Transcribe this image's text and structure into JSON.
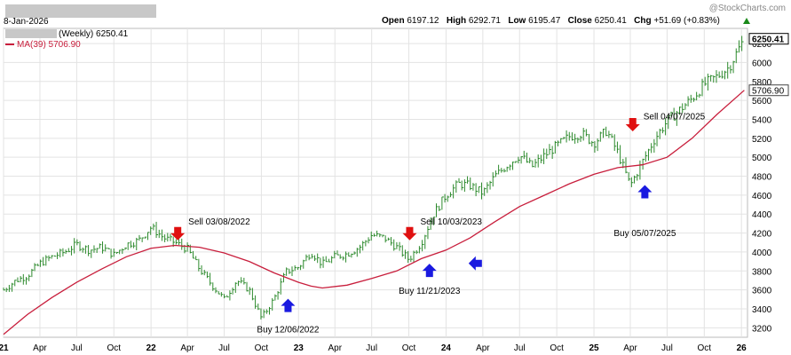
{
  "header": {
    "date": "8-Jan-2026",
    "brand": "@StockCharts.com",
    "open_label": "Open",
    "open": "6197.12",
    "high_label": "High",
    "high": "6292.71",
    "low_label": "Low",
    "low": "6195.47",
    "close_label": "Close",
    "close": "6250.41",
    "chg_label": "Chg",
    "chg": "+51.69 (+0.83%)"
  },
  "legend": {
    "price": "(Weekly) 6250.41",
    "ma": "MA(39) 5706.90"
  },
  "colors": {
    "price": "#2d8a2d",
    "ma": "#c81e3c",
    "grid": "#e3e3e3",
    "sell": "#e01010",
    "buy": "#1a1ae0"
  },
  "chart_data": {
    "type": "line",
    "ylim": [
      3100,
      6360
    ],
    "yticks": [
      3200,
      3400,
      3600,
      3800,
      4000,
      4200,
      4400,
      4600,
      4800,
      5000,
      5200,
      5400,
      5600,
      5800,
      6000,
      6200
    ],
    "xlim": [
      "2021-01-01",
      "2026-01-16"
    ],
    "x_tick_labels": [
      "21",
      "Apr",
      "Jul",
      "Oct",
      "22",
      "Apr",
      "Jul",
      "Oct",
      "23",
      "Apr",
      "Jul",
      "Oct",
      "24",
      "Apr",
      "Jul",
      "Oct",
      "25",
      "Apr",
      "Jul",
      "Oct",
      "26"
    ],
    "x_tick_dates": [
      "2021-01-01",
      "2021-04-01",
      "2021-07-01",
      "2021-10-01",
      "2022-01-01",
      "2022-04-01",
      "2022-07-01",
      "2022-10-01",
      "2023-01-01",
      "2023-04-01",
      "2023-07-01",
      "2023-10-01",
      "2024-01-01",
      "2024-04-01",
      "2024-07-01",
      "2024-10-01",
      "2025-01-01",
      "2025-04-01",
      "2025-07-01",
      "2025-10-01",
      "2026-01-01"
    ],
    "series": [
      {
        "name": "(Weekly) 6250.41",
        "points": [
          [
            "2021-01-01",
            3600
          ],
          [
            "2021-02-01",
            3700
          ],
          [
            "2021-03-01",
            3750
          ],
          [
            "2021-04-01",
            3880
          ],
          [
            "2021-05-01",
            3950
          ],
          [
            "2021-06-01",
            4000
          ],
          [
            "2021-07-01",
            4080
          ],
          [
            "2021-08-01",
            4020
          ],
          [
            "2021-09-01",
            4050
          ],
          [
            "2021-10-01",
            3970
          ],
          [
            "2021-11-01",
            4080
          ],
          [
            "2021-12-01",
            4120
          ],
          [
            "2022-01-01",
            4260
          ],
          [
            "2022-02-01",
            4150
          ],
          [
            "2022-03-01",
            4100
          ],
          [
            "2022-04-01",
            4030
          ],
          [
            "2022-05-01",
            3820
          ],
          [
            "2022-06-01",
            3650
          ],
          [
            "2022-07-01",
            3500
          ],
          [
            "2022-08-01",
            3700
          ],
          [
            "2022-09-01",
            3600
          ],
          [
            "2022-10-01",
            3300
          ],
          [
            "2022-11-01",
            3500
          ],
          [
            "2022-12-01",
            3790
          ],
          [
            "2023-01-01",
            3840
          ],
          [
            "2023-02-01",
            4000
          ],
          [
            "2023-03-01",
            3870
          ],
          [
            "2023-04-01",
            3950
          ],
          [
            "2023-05-01",
            3980
          ],
          [
            "2023-06-01",
            4050
          ],
          [
            "2023-07-01",
            4180
          ],
          [
            "2023-08-01",
            4150
          ],
          [
            "2023-09-01",
            4050
          ],
          [
            "2023-10-01",
            3920
          ],
          [
            "2023-11-01",
            4100
          ],
          [
            "2023-12-01",
            4400
          ],
          [
            "2024-01-01",
            4600
          ],
          [
            "2024-02-01",
            4720
          ],
          [
            "2024-03-01",
            4700
          ],
          [
            "2024-04-01",
            4620
          ],
          [
            "2024-05-01",
            4800
          ],
          [
            "2024-06-01",
            4920
          ],
          [
            "2024-07-01",
            5020
          ],
          [
            "2024-08-01",
            4900
          ],
          [
            "2024-09-01",
            5020
          ],
          [
            "2024-10-01",
            5120
          ],
          [
            "2024-11-01",
            5220
          ],
          [
            "2024-12-01",
            5250
          ],
          [
            "2025-01-01",
            5150
          ],
          [
            "2025-02-01",
            5280
          ],
          [
            "2025-03-01",
            5050
          ],
          [
            "2025-04-01",
            4700
          ],
          [
            "2025-05-01",
            4950
          ],
          [
            "2025-06-01",
            5200
          ],
          [
            "2025-07-01",
            5380
          ],
          [
            "2025-08-01",
            5500
          ],
          [
            "2025-09-01",
            5620
          ],
          [
            "2025-10-01",
            5770
          ],
          [
            "2025-11-01",
            5850
          ],
          [
            "2025-12-01",
            5950
          ],
          [
            "2026-01-08",
            6250.41
          ]
        ]
      },
      {
        "name": "MA(39) 5706.90",
        "points": [
          [
            "2021-01-01",
            3130
          ],
          [
            "2021-03-01",
            3340
          ],
          [
            "2021-05-01",
            3520
          ],
          [
            "2021-07-01",
            3680
          ],
          [
            "2021-09-01",
            3820
          ],
          [
            "2021-11-01",
            3950
          ],
          [
            "2022-01-01",
            4040
          ],
          [
            "2022-03-01",
            4070
          ],
          [
            "2022-05-01",
            4050
          ],
          [
            "2022-07-01",
            3990
          ],
          [
            "2022-09-01",
            3900
          ],
          [
            "2022-11-01",
            3780
          ],
          [
            "2023-01-01",
            3680
          ],
          [
            "2023-02-01",
            3640
          ],
          [
            "2023-03-01",
            3620
          ],
          [
            "2023-05-01",
            3650
          ],
          [
            "2023-07-01",
            3720
          ],
          [
            "2023-09-01",
            3800
          ],
          [
            "2023-11-01",
            3930
          ],
          [
            "2024-01-01",
            4020
          ],
          [
            "2024-03-01",
            4150
          ],
          [
            "2024-05-01",
            4320
          ],
          [
            "2024-07-01",
            4480
          ],
          [
            "2024-09-01",
            4600
          ],
          [
            "2024-11-01",
            4720
          ],
          [
            "2025-01-01",
            4820
          ],
          [
            "2025-03-01",
            4890
          ],
          [
            "2025-05-01",
            4920
          ],
          [
            "2025-07-01",
            5000
          ],
          [
            "2025-09-01",
            5200
          ],
          [
            "2025-11-01",
            5450
          ],
          [
            "2026-01-08",
            5706.9
          ]
        ]
      }
    ],
    "annotations": [
      {
        "type": "sell",
        "date": "2022-03-08",
        "y": 4180,
        "label": "Sell 03/08/2022",
        "label_y": 4290
      },
      {
        "type": "sell",
        "date": "2023-10-03",
        "y": 4180,
        "label": "Sell 10/03/2023",
        "label_y": 4290
      },
      {
        "type": "sell",
        "date": "2025-04-07",
        "y": 5330,
        "label": "Sell 04/07/2025",
        "label_y": 5400
      },
      {
        "type": "buy",
        "date": "2022-12-06",
        "y": 3450,
        "label": "Buy 12/06/2022",
        "label_y": 3150
      },
      {
        "type": "buy",
        "date": "2023-11-21",
        "y": 3820,
        "label": "Buy 11/21/2023",
        "label_y": 3560
      },
      {
        "type": "buy",
        "date": "2025-05-07",
        "y": 4650,
        "label": "Buy 05/07/2025",
        "label_y": 4170
      },
      {
        "type": "buy-left",
        "date": "2024-03-10",
        "y": 3880,
        "label": ""
      }
    ],
    "last_price_tag": "6250.41",
    "last_ma_tag": "5706.90"
  }
}
